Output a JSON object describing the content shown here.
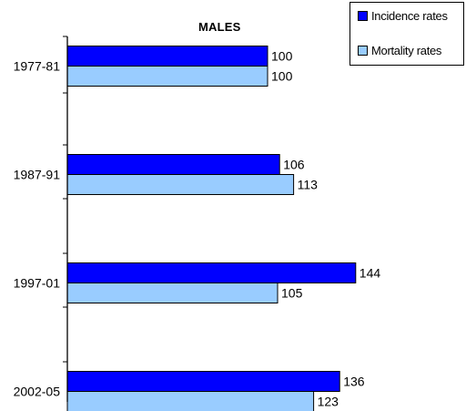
{
  "chart_data": {
    "type": "bar",
    "orientation": "horizontal",
    "title": "MALES",
    "categories": [
      "1977-81",
      "1987-91",
      "1997-01",
      "2002-05"
    ],
    "series": [
      {
        "name": "Incidence rates",
        "color": "#0000FF",
        "values": [
          100,
          106,
          144,
          136
        ]
      },
      {
        "name": "Mortality rates",
        "color": "#99CCFF",
        "values": [
          100,
          113,
          105,
          123
        ]
      }
    ],
    "xlim": [
      0,
      200
    ],
    "grid": false,
    "legend_position": "top-right",
    "data_labels": true
  }
}
